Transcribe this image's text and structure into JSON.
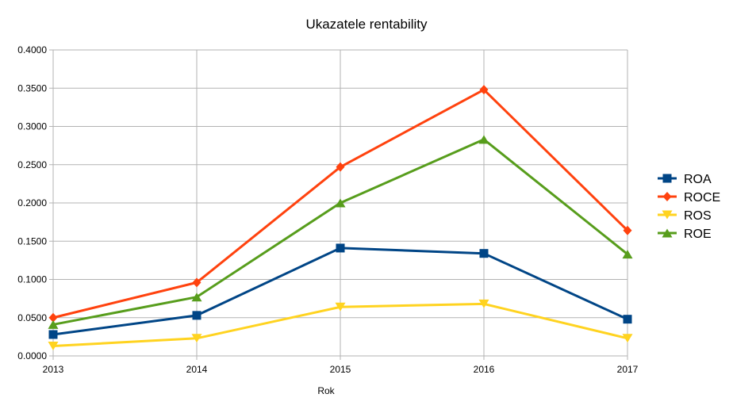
{
  "chart_data": {
    "type": "line",
    "title": "Ukazatele rentability",
    "xlabel": "Rok",
    "ylabel": "",
    "categories": [
      "2013",
      "2014",
      "2015",
      "2016",
      "2017"
    ],
    "ylim": [
      0,
      0.4
    ],
    "yticks": [
      "0.0000",
      "0.0500",
      "0.1000",
      "0.1500",
      "0.2000",
      "0.2500",
      "0.3000",
      "0.3500",
      "0.4000"
    ],
    "grid": true,
    "legend_position": "right",
    "series": [
      {
        "name": "ROA",
        "color": "#004586",
        "marker": "square",
        "values": [
          0.028,
          0.053,
          0.141,
          0.134,
          0.048
        ]
      },
      {
        "name": "ROCE",
        "color": "#ff420e",
        "marker": "diamond",
        "values": [
          0.05,
          0.096,
          0.247,
          0.348,
          0.164
        ]
      },
      {
        "name": "ROS",
        "color": "#ffd320",
        "marker": "triangle-down",
        "values": [
          0.013,
          0.023,
          0.064,
          0.068,
          0.023
        ]
      },
      {
        "name": "ROE",
        "color": "#579d1c",
        "marker": "triangle-up",
        "values": [
          0.041,
          0.077,
          0.2,
          0.283,
          0.133
        ]
      }
    ]
  }
}
